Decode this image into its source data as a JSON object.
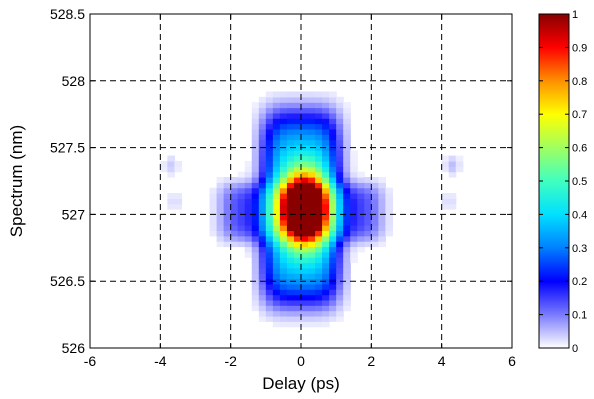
{
  "chart_data": {
    "type": "heatmap",
    "title": "",
    "xlabel": "Delay (ps)",
    "ylabel": "Spectrum (nm)",
    "xlim": [
      -6,
      6
    ],
    "ylim": [
      526,
      528.5
    ],
    "x_ticks": [
      "-6",
      "-4",
      "-2",
      "0",
      "2",
      "4",
      "6"
    ],
    "y_ticks": [
      "526",
      "526.5",
      "527",
      "527.5",
      "528",
      "528.5"
    ],
    "grid": "dashed",
    "colormap": "jet",
    "colorbar": {
      "range": [
        0,
        1
      ],
      "ticks": [
        "0",
        "0.1",
        "0.2",
        "0.3",
        "0.4",
        "0.5",
        "0.6",
        "0.7",
        "0.8",
        "0.9",
        "1"
      ]
    },
    "intensity_model": {
      "main_peak": {
        "x": 0.1,
        "y": 527.05,
        "sigma_x": 0.45,
        "sigma_y": 0.18,
        "amplitude": 1.0
      },
      "central_column": {
        "x": 0.0,
        "y": 527.05,
        "half_width_x": 1.1,
        "half_height_y": 0.72,
        "amplitude": 0.38
      },
      "side_wings": {
        "y": 527.02,
        "half_height_y": 0.22,
        "reach_x": 2.3,
        "amplitude": 0.16
      },
      "satellites": [
        {
          "x": 4.3,
          "y": 527.37,
          "amplitude": 0.05
        },
        {
          "x": -3.7,
          "y": 527.37,
          "amplitude": 0.04
        },
        {
          "x": 4.2,
          "y": 527.1,
          "amplitude": 0.03
        },
        {
          "x": -3.6,
          "y": 527.1,
          "amplitude": 0.03
        }
      ]
    }
  }
}
